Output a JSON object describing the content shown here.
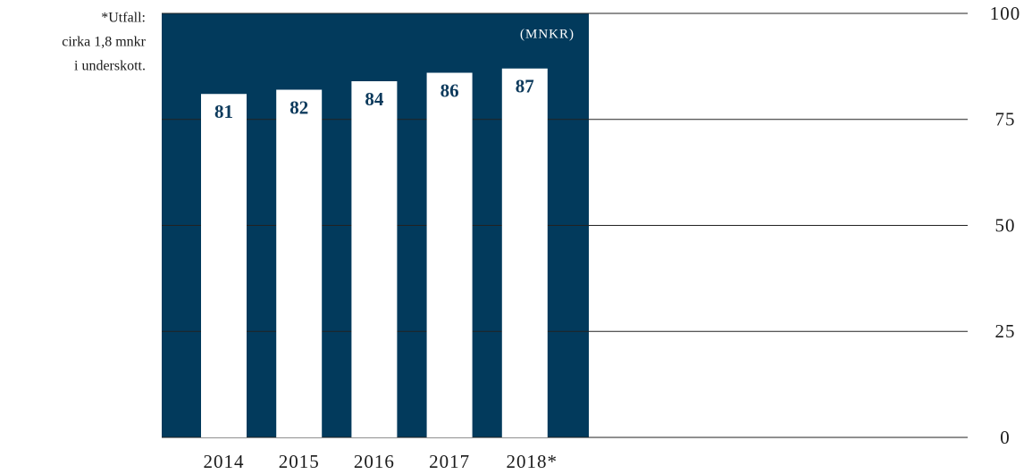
{
  "chart_data": {
    "type": "bar",
    "categories": [
      "2014",
      "2015",
      "2016",
      "2017",
      "2018*"
    ],
    "values": [
      81,
      82,
      84,
      86,
      87
    ],
    "color": "#ffffff",
    "label_color": "#0d3a5c",
    "panel_color": "#023a5c",
    "ylim": [
      0,
      100
    ],
    "yticks": [
      0,
      25,
      50,
      75,
      100
    ],
    "grid": true,
    "unit_label": "(MNKR)",
    "annotation": [
      "*Utfall:",
      "cirka 1,8 mnkr",
      "i underskott."
    ]
  }
}
